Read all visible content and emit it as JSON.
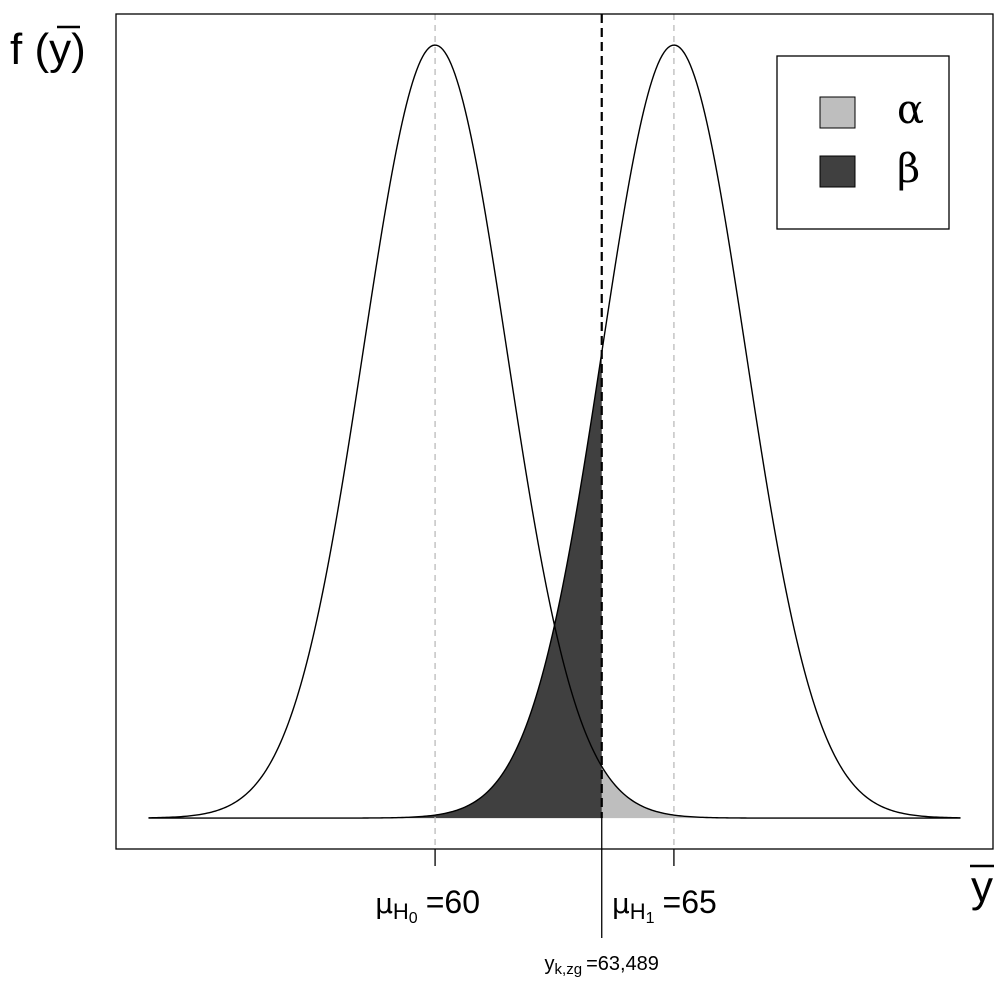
{
  "chart_data": {
    "type": "hypothesis-test",
    "distributions": [
      {
        "mean": 60,
        "sd": 1.5,
        "label": {
          "symbol": "μ",
          "sub": "H",
          "subsub": "0",
          "value_label": "=60"
        }
      },
      {
        "mean": 65,
        "sd": 1.5,
        "label": {
          "symbol": "μ",
          "sub": "H",
          "subsub": "1",
          "value_label": "=65"
        }
      }
    ],
    "critical": {
      "value": 63.489,
      "label": {
        "symbol": "y",
        "sub": "k,zg",
        "value_label": "=63,489"
      }
    },
    "xlim": [
      54,
      71
    ],
    "ylim": [
      0,
      0.266
    ],
    "xlabel": {
      "symbol": "y"
    },
    "ylabel": {
      "prefix": "f (",
      "symbol": "y",
      "suffix": ")"
    },
    "legend": [
      {
        "name": "α",
        "color": "#bebebe"
      },
      {
        "name": "β",
        "color": "#404040"
      }
    ],
    "legend_position": "top-right"
  }
}
